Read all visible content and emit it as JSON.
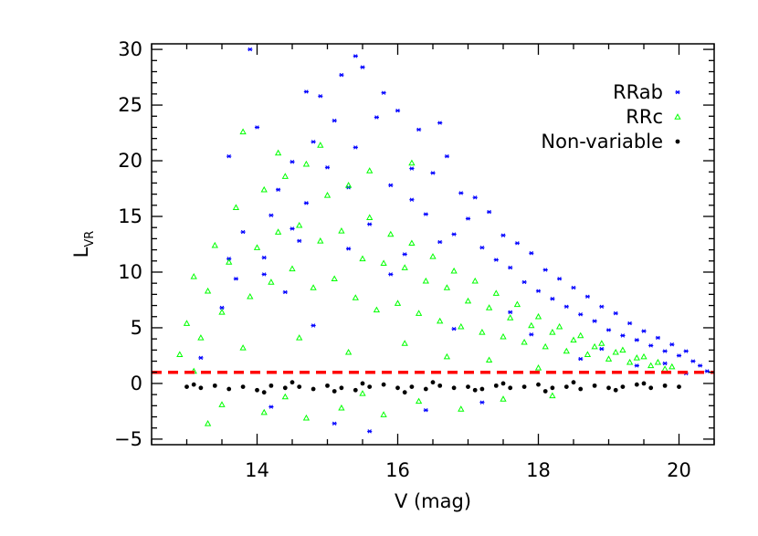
{
  "chart_data": {
    "type": "scatter",
    "title": "",
    "xlabel": "V (mag)",
    "ylabel_main": "L",
    "ylabel_sub": "VR",
    "xlim": [
      12.5,
      20.5
    ],
    "ylim": [
      -5.5,
      30.5
    ],
    "xticks": [
      {
        "value": 14,
        "label": "14"
      },
      {
        "value": 16,
        "label": "16"
      },
      {
        "value": 18,
        "label": "18"
      },
      {
        "value": 20,
        "label": "20"
      }
    ],
    "yticks": [
      {
        "value": -5,
        "label": "−5"
      },
      {
        "value": 0,
        "label": "0"
      },
      {
        "value": 5,
        "label": "5"
      },
      {
        "value": 10,
        "label": "10"
      },
      {
        "value": 15,
        "label": "15"
      },
      {
        "value": 20,
        "label": "20"
      },
      {
        "value": 25,
        "label": "25"
      },
      {
        "value": 30,
        "label": "30"
      }
    ],
    "x_minor_step": 0.5,
    "y_minor_step": 1,
    "threshold": {
      "y": 1.0,
      "color": "#ff0000",
      "style": "dashed"
    },
    "legend_position": "top-right",
    "series": [
      {
        "name": "RRab",
        "marker": "asterisk",
        "color": "#0000ff",
        "points": [
          [
            13.2,
            2.3
          ],
          [
            13.5,
            6.8
          ],
          [
            13.6,
            11.2
          ],
          [
            13.7,
            9.4
          ],
          [
            13.8,
            13.6
          ],
          [
            13.9,
            30.0
          ],
          [
            14.0,
            23.0
          ],
          [
            14.1,
            11.3
          ],
          [
            14.2,
            15.1
          ],
          [
            14.3,
            17.4
          ],
          [
            14.4,
            8.2
          ],
          [
            14.5,
            19.9
          ],
          [
            14.6,
            12.8
          ],
          [
            14.7,
            16.2
          ],
          [
            14.8,
            21.7
          ],
          [
            14.9,
            25.8
          ],
          [
            15.0,
            19.4
          ],
          [
            15.1,
            23.6
          ],
          [
            15.2,
            27.7
          ],
          [
            15.3,
            17.6
          ],
          [
            15.4,
            21.2
          ],
          [
            15.5,
            28.4
          ],
          [
            15.6,
            14.3
          ],
          [
            15.7,
            23.9
          ],
          [
            15.8,
            26.1
          ],
          [
            15.9,
            17.8
          ],
          [
            16.0,
            24.5
          ],
          [
            16.1,
            11.6
          ],
          [
            16.2,
            19.3
          ],
          [
            16.3,
            22.8
          ],
          [
            16.4,
            15.2
          ],
          [
            16.5,
            18.9
          ],
          [
            16.6,
            12.7
          ],
          [
            16.7,
            20.4
          ],
          [
            16.8,
            13.4
          ],
          [
            16.9,
            17.1
          ],
          [
            17.0,
            14.8
          ],
          [
            17.1,
            16.7
          ],
          [
            17.2,
            12.2
          ],
          [
            17.3,
            15.4
          ],
          [
            17.4,
            11.1
          ],
          [
            17.5,
            13.3
          ],
          [
            17.6,
            10.4
          ],
          [
            17.7,
            12.6
          ],
          [
            17.8,
            9.1
          ],
          [
            17.9,
            11.7
          ],
          [
            18.0,
            8.3
          ],
          [
            18.1,
            10.2
          ],
          [
            18.2,
            7.6
          ],
          [
            18.3,
            9.4
          ],
          [
            18.4,
            6.9
          ],
          [
            18.5,
            8.6
          ],
          [
            18.6,
            6.2
          ],
          [
            18.7,
            7.8
          ],
          [
            18.8,
            5.6
          ],
          [
            18.9,
            6.9
          ],
          [
            19.0,
            4.8
          ],
          [
            19.1,
            6.3
          ],
          [
            19.2,
            4.3
          ],
          [
            19.3,
            5.4
          ],
          [
            19.4,
            3.9
          ],
          [
            19.5,
            4.7
          ],
          [
            19.6,
            3.4
          ],
          [
            19.7,
            4.1
          ],
          [
            19.8,
            2.9
          ],
          [
            19.9,
            3.5
          ],
          [
            20.0,
            2.5
          ],
          [
            20.1,
            2.9
          ],
          [
            20.2,
            2.0
          ],
          [
            20.3,
            1.6
          ],
          [
            20.4,
            1.1
          ],
          [
            14.2,
            -2.1
          ],
          [
            15.1,
            -3.6
          ],
          [
            16.4,
            -2.4
          ],
          [
            17.2,
            -1.7
          ],
          [
            15.6,
            -4.3
          ],
          [
            14.8,
            5.2
          ],
          [
            16.8,
            4.9
          ],
          [
            18.6,
            2.2
          ],
          [
            19.4,
            1.6
          ],
          [
            15.9,
            9.8
          ],
          [
            17.6,
            6.4
          ],
          [
            14.5,
            13.9
          ],
          [
            16.2,
            16.5
          ],
          [
            15.3,
            12.1
          ],
          [
            17.9,
            4.4
          ],
          [
            18.9,
            3.1
          ],
          [
            19.8,
            1.8
          ],
          [
            13.6,
            20.4
          ],
          [
            14.1,
            9.8
          ],
          [
            20.1,
            0.9
          ],
          [
            15.4,
            29.4
          ],
          [
            14.7,
            26.2
          ],
          [
            16.6,
            23.4
          ]
        ]
      },
      {
        "name": "RRc",
        "marker": "triangle",
        "color": "#00ff00",
        "points": [
          [
            12.9,
            2.6
          ],
          [
            13.0,
            5.4
          ],
          [
            13.1,
            9.6
          ],
          [
            13.2,
            4.1
          ],
          [
            13.3,
            8.3
          ],
          [
            13.4,
            12.4
          ],
          [
            13.5,
            6.4
          ],
          [
            13.6,
            10.9
          ],
          [
            13.7,
            15.8
          ],
          [
            13.8,
            22.6
          ],
          [
            13.9,
            7.8
          ],
          [
            14.0,
            12.2
          ],
          [
            14.1,
            17.4
          ],
          [
            14.2,
            9.1
          ],
          [
            14.3,
            13.6
          ],
          [
            14.4,
            18.6
          ],
          [
            14.5,
            10.3
          ],
          [
            14.6,
            14.2
          ],
          [
            14.7,
            19.7
          ],
          [
            14.8,
            8.6
          ],
          [
            14.9,
            12.8
          ],
          [
            15.0,
            16.9
          ],
          [
            15.1,
            9.4
          ],
          [
            15.2,
            13.7
          ],
          [
            15.3,
            17.8
          ],
          [
            15.4,
            7.7
          ],
          [
            15.5,
            11.2
          ],
          [
            15.6,
            14.9
          ],
          [
            15.7,
            6.6
          ],
          [
            15.8,
            10.8
          ],
          [
            15.9,
            13.4
          ],
          [
            16.0,
            7.2
          ],
          [
            16.1,
            10.4
          ],
          [
            16.2,
            12.6
          ],
          [
            16.3,
            6.3
          ],
          [
            16.4,
            9.2
          ],
          [
            16.5,
            11.4
          ],
          [
            16.6,
            5.6
          ],
          [
            16.7,
            8.6
          ],
          [
            16.8,
            10.1
          ],
          [
            16.9,
            5.1
          ],
          [
            17.0,
            7.4
          ],
          [
            17.1,
            9.2
          ],
          [
            17.2,
            4.6
          ],
          [
            17.3,
            6.8
          ],
          [
            17.4,
            8.1
          ],
          [
            17.5,
            4.2
          ],
          [
            17.6,
            5.9
          ],
          [
            17.7,
            7.1
          ],
          [
            17.8,
            3.7
          ],
          [
            17.9,
            5.2
          ],
          [
            18.0,
            6.0
          ],
          [
            18.1,
            3.3
          ],
          [
            18.2,
            4.6
          ],
          [
            18.3,
            5.1
          ],
          [
            18.4,
            2.9
          ],
          [
            18.5,
            3.9
          ],
          [
            18.6,
            4.3
          ],
          [
            18.7,
            2.6
          ],
          [
            18.8,
            3.3
          ],
          [
            18.9,
            3.6
          ],
          [
            19.0,
            2.2
          ],
          [
            19.1,
            2.8
          ],
          [
            19.2,
            3.0
          ],
          [
            19.3,
            1.9
          ],
          [
            19.4,
            2.3
          ],
          [
            19.5,
            2.4
          ],
          [
            19.6,
            1.6
          ],
          [
            19.7,
            1.9
          ],
          [
            19.8,
            1.3
          ],
          [
            19.9,
            1.5
          ],
          [
            13.5,
            -1.9
          ],
          [
            14.1,
            -2.6
          ],
          [
            14.7,
            -3.1
          ],
          [
            15.2,
            -2.2
          ],
          [
            15.8,
            -2.8
          ],
          [
            16.3,
            -1.6
          ],
          [
            16.9,
            -2.3
          ],
          [
            17.5,
            -1.4
          ],
          [
            18.2,
            -1.1
          ],
          [
            13.3,
            -3.6
          ],
          [
            14.4,
            -1.2
          ],
          [
            15.5,
            -0.9
          ],
          [
            13.1,
            1.1
          ],
          [
            13.8,
            3.2
          ],
          [
            14.6,
            4.1
          ],
          [
            15.3,
            2.8
          ],
          [
            16.1,
            3.6
          ],
          [
            16.7,
            2.4
          ],
          [
            17.3,
            2.1
          ],
          [
            18.0,
            1.4
          ],
          [
            14.9,
            21.4
          ],
          [
            15.6,
            19.1
          ],
          [
            14.3,
            20.7
          ],
          [
            16.2,
            19.8
          ]
        ]
      },
      {
        "name": "Non-variable",
        "marker": "dot",
        "color": "#000000",
        "points": [
          [
            13.0,
            -0.3
          ],
          [
            13.2,
            -0.4
          ],
          [
            13.4,
            -0.2
          ],
          [
            13.6,
            -0.5
          ],
          [
            13.8,
            -0.3
          ],
          [
            14.0,
            -0.6
          ],
          [
            14.2,
            -0.2
          ],
          [
            14.4,
            -0.4
          ],
          [
            14.6,
            -0.3
          ],
          [
            14.8,
            -0.5
          ],
          [
            15.0,
            -0.2
          ],
          [
            15.2,
            -0.4
          ],
          [
            15.4,
            -0.6
          ],
          [
            15.6,
            -0.3
          ],
          [
            15.8,
            -0.1
          ],
          [
            16.0,
            -0.4
          ],
          [
            16.2,
            -0.3
          ],
          [
            16.4,
            -0.5
          ],
          [
            16.6,
            -0.2
          ],
          [
            16.8,
            -0.4
          ],
          [
            17.0,
            -0.3
          ],
          [
            17.2,
            -0.5
          ],
          [
            17.4,
            -0.2
          ],
          [
            17.6,
            -0.4
          ],
          [
            17.8,
            -0.3
          ],
          [
            18.0,
            -0.1
          ],
          [
            18.2,
            -0.4
          ],
          [
            18.4,
            -0.3
          ],
          [
            18.6,
            -0.5
          ],
          [
            18.8,
            -0.2
          ],
          [
            19.0,
            -0.4
          ],
          [
            19.2,
            -0.3
          ],
          [
            19.4,
            -0.1
          ],
          [
            19.6,
            -0.4
          ],
          [
            19.8,
            -0.2
          ],
          [
            20.0,
            -0.3
          ],
          [
            13.1,
            -0.1
          ],
          [
            14.1,
            -0.8
          ],
          [
            15.1,
            -0.7
          ],
          [
            16.1,
            -0.8
          ],
          [
            17.1,
            -0.6
          ],
          [
            18.1,
            -0.7
          ],
          [
            19.1,
            -0.6
          ],
          [
            14.5,
            0.1
          ],
          [
            15.5,
            0.0
          ],
          [
            16.5,
            0.1
          ],
          [
            17.5,
            0.0
          ],
          [
            18.5,
            0.1
          ],
          [
            19.5,
            0.0
          ]
        ]
      }
    ]
  }
}
